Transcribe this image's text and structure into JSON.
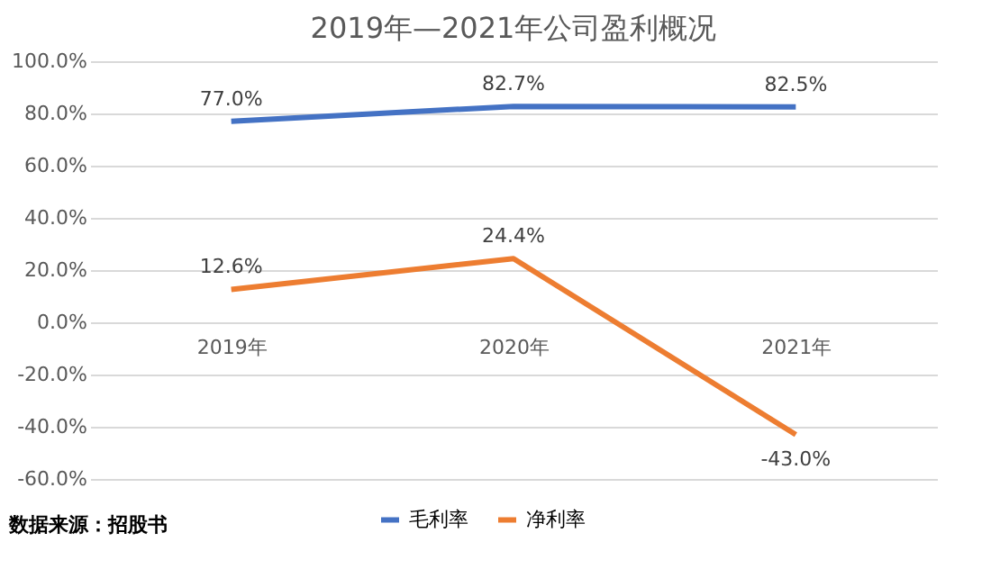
{
  "chart_data": {
    "type": "line",
    "title": "2019年—2021年公司盈利概况",
    "categories": [
      "2019年",
      "2020年",
      "2021年"
    ],
    "series": [
      {
        "name": "毛利率",
        "color": "#4472c4",
        "values": [
          77.0,
          82.7,
          82.5
        ],
        "value_labels": [
          "77.0%",
          "82.7%",
          "82.5%"
        ]
      },
      {
        "name": "净利率",
        "color": "#ed7d31",
        "values": [
          12.6,
          24.4,
          -43.0
        ],
        "value_labels": [
          "12.6%",
          "24.4%",
          "-43.0%"
        ]
      }
    ],
    "ylim": [
      -60,
      100
    ],
    "yticks": [
      {
        "value": -60,
        "label": "-60.0%"
      },
      {
        "value": -40,
        "label": "-40.0%"
      },
      {
        "value": -20,
        "label": "-20.0%"
      },
      {
        "value": 0,
        "label": "0.0%"
      },
      {
        "value": 20,
        "label": "20.0%"
      },
      {
        "value": 40,
        "label": "40.0%"
      },
      {
        "value": 60,
        "label": "60.0%"
      },
      {
        "value": 80,
        "label": "80.0%"
      },
      {
        "value": 100,
        "label": "100.0%"
      }
    ],
    "grid": "y",
    "legend": "bottom",
    "marker": "none",
    "line_style": "solid",
    "annotations": [
      "数据来源：招股书"
    ]
  }
}
